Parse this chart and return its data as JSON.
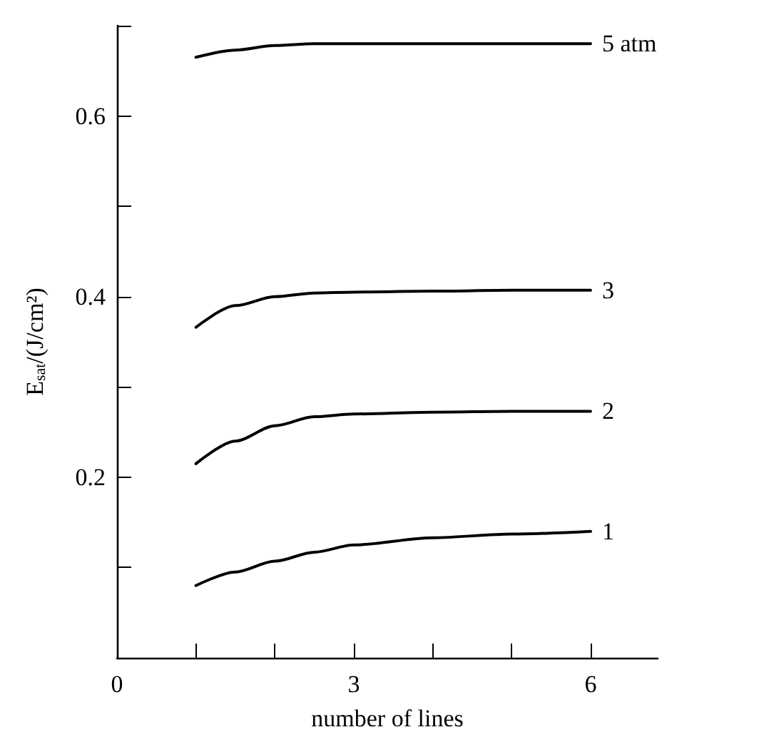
{
  "chart_data": {
    "type": "line",
    "xlabel": "number of lines",
    "ylabel": "E$_{sat}$/(J/cm²)",
    "xlim": [
      0,
      6.85
    ],
    "ylim": [
      0,
      0.7
    ],
    "xticks": [
      {
        "value": 0,
        "label": "0"
      },
      {
        "value": 1,
        "label": null
      },
      {
        "value": 2,
        "label": null
      },
      3,
      {
        "value": 4,
        "label": null
      },
      {
        "value": 5,
        "label": null
      },
      6
    ],
    "yticks": [
      {
        "value": 0.1,
        "label": null
      },
      0.2,
      {
        "value": 0.3,
        "label": null
      },
      0.4,
      {
        "value": 0.5,
        "label": null
      },
      0.6,
      {
        "value": 0.7,
        "label": null
      }
    ],
    "x": [
      1,
      1.5,
      2,
      2.5,
      3,
      4,
      5,
      6
    ],
    "series": [
      {
        "name": "5 atm",
        "color": "#000000",
        "values": [
          0.665,
          0.673,
          0.678,
          0.68,
          0.68,
          0.68,
          0.68,
          0.68
        ]
      },
      {
        "name": "3",
        "color": "#000000",
        "values": [
          0.366,
          0.39,
          0.4,
          0.404,
          0.405,
          0.406,
          0.407,
          0.407
        ]
      },
      {
        "name": "2",
        "color": "#000000",
        "values": [
          0.215,
          0.24,
          0.257,
          0.267,
          0.27,
          0.272,
          0.273,
          0.273
        ]
      },
      {
        "name": "1",
        "color": "#000000",
        "values": [
          0.08,
          0.095,
          0.107,
          0.117,
          0.125,
          0.133,
          0.137,
          0.14
        ]
      }
    ],
    "grid": false,
    "marker": "none",
    "line_style": "solid"
  }
}
